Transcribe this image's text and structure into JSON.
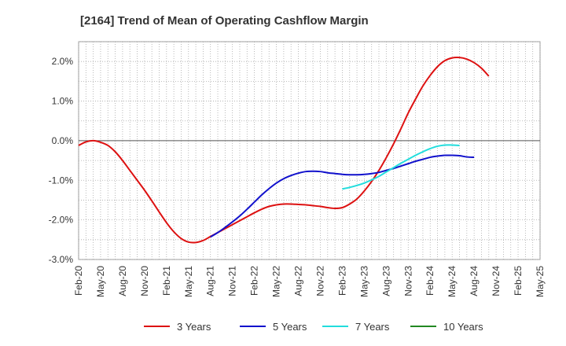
{
  "chart_data": {
    "type": "line",
    "title": "[2164]  Trend of Mean of Operating Cashflow Margin",
    "ylim": [
      -3.0,
      2.5
    ],
    "y_ticks": [
      -3.0,
      -2.0,
      -1.0,
      0.0,
      1.0,
      2.0
    ],
    "y_tick_labels": [
      "-3.0%",
      "-2.0%",
      "-1.0%",
      "0.0%",
      "1.0%",
      "2.0%"
    ],
    "x_ticks": [
      "Feb-20",
      "May-20",
      "Aug-20",
      "Nov-20",
      "Feb-21",
      "May-21",
      "Aug-21",
      "Nov-21",
      "Feb-22",
      "May-22",
      "Aug-22",
      "Nov-22",
      "Feb-23",
      "May-23",
      "Aug-23",
      "Nov-23",
      "Feb-24",
      "May-24",
      "Aug-24",
      "Nov-24",
      "Feb-25",
      "May-25"
    ],
    "grid": true,
    "legend_position": "bottom",
    "series": [
      {
        "name": "3 Years",
        "color": "#dd1111",
        "points": [
          [
            "Feb-20",
            -0.12
          ],
          [
            "Mar-20",
            -0.03
          ],
          [
            "Apr-20",
            0.0
          ],
          [
            "May-20",
            -0.04
          ],
          [
            "Jun-20",
            -0.12
          ],
          [
            "Jul-20",
            -0.28
          ],
          [
            "Aug-20",
            -0.5
          ],
          [
            "Sep-20",
            -0.75
          ],
          [
            "Oct-20",
            -1.0
          ],
          [
            "Nov-20",
            -1.25
          ],
          [
            "Dec-20",
            -1.52
          ],
          [
            "Jan-21",
            -1.8
          ],
          [
            "Feb-21",
            -2.07
          ],
          [
            "Mar-21",
            -2.3
          ],
          [
            "Apr-21",
            -2.47
          ],
          [
            "May-21",
            -2.56
          ],
          [
            "Jun-21",
            -2.57
          ],
          [
            "Jul-21",
            -2.52
          ],
          [
            "Aug-21",
            -2.42
          ],
          [
            "Sep-21",
            -2.32
          ],
          [
            "Oct-21",
            -2.22
          ],
          [
            "Nov-21",
            -2.12
          ],
          [
            "Dec-21",
            -2.02
          ],
          [
            "Jan-22",
            -1.92
          ],
          [
            "Feb-22",
            -1.82
          ],
          [
            "Mar-22",
            -1.73
          ],
          [
            "Apr-22",
            -1.66
          ],
          [
            "May-22",
            -1.62
          ],
          [
            "Jun-22",
            -1.6
          ],
          [
            "Jul-22",
            -1.6
          ],
          [
            "Aug-22",
            -1.61
          ],
          [
            "Sep-22",
            -1.62
          ],
          [
            "Oct-22",
            -1.64
          ],
          [
            "Nov-22",
            -1.66
          ],
          [
            "Dec-22",
            -1.69
          ],
          [
            "Jan-23",
            -1.71
          ],
          [
            "Feb-23",
            -1.69
          ],
          [
            "Mar-23",
            -1.6
          ],
          [
            "Apr-23",
            -1.47
          ],
          [
            "May-23",
            -1.27
          ],
          [
            "Jun-23",
            -1.03
          ],
          [
            "Jul-23",
            -0.75
          ],
          [
            "Aug-23",
            -0.43
          ],
          [
            "Sep-23",
            -0.08
          ],
          [
            "Oct-23",
            0.3
          ],
          [
            "Nov-23",
            0.7
          ],
          [
            "Dec-23",
            1.05
          ],
          [
            "Jan-24",
            1.38
          ],
          [
            "Feb-24",
            1.65
          ],
          [
            "Mar-24",
            1.87
          ],
          [
            "Apr-24",
            2.02
          ],
          [
            "May-24",
            2.09
          ],
          [
            "Jun-24",
            2.1
          ],
          [
            "Jul-24",
            2.06
          ],
          [
            "Aug-24",
            1.97
          ],
          [
            "Sep-24",
            1.83
          ],
          [
            "Oct-24",
            1.63
          ]
        ]
      },
      {
        "name": "5 Years",
        "color": "#1111cc",
        "points": [
          [
            "Aug-21",
            -2.43
          ],
          [
            "Sep-21",
            -2.32
          ],
          [
            "Oct-21",
            -2.19
          ],
          [
            "Nov-21",
            -2.05
          ],
          [
            "Dec-21",
            -1.9
          ],
          [
            "Jan-22",
            -1.73
          ],
          [
            "Feb-22",
            -1.55
          ],
          [
            "Mar-22",
            -1.37
          ],
          [
            "Apr-22",
            -1.21
          ],
          [
            "May-22",
            -1.07
          ],
          [
            "Jun-22",
            -0.96
          ],
          [
            "Jul-22",
            -0.88
          ],
          [
            "Aug-22",
            -0.82
          ],
          [
            "Sep-22",
            -0.78
          ],
          [
            "Oct-22",
            -0.77
          ],
          [
            "Nov-22",
            -0.78
          ],
          [
            "Dec-22",
            -0.81
          ],
          [
            "Jan-23",
            -0.83
          ],
          [
            "Feb-23",
            -0.85
          ],
          [
            "Mar-23",
            -0.86
          ],
          [
            "Apr-23",
            -0.86
          ],
          [
            "May-23",
            -0.85
          ],
          [
            "Jun-23",
            -0.83
          ],
          [
            "Jul-23",
            -0.8
          ],
          [
            "Aug-23",
            -0.75
          ],
          [
            "Sep-23",
            -0.7
          ],
          [
            "Oct-23",
            -0.64
          ],
          [
            "Nov-23",
            -0.58
          ],
          [
            "Dec-23",
            -0.52
          ],
          [
            "Jan-24",
            -0.47
          ],
          [
            "Feb-24",
            -0.42
          ],
          [
            "Mar-24",
            -0.39
          ],
          [
            "Apr-24",
            -0.37
          ],
          [
            "May-24",
            -0.37
          ],
          [
            "Jun-24",
            -0.38
          ],
          [
            "Jul-24",
            -0.41
          ],
          [
            "Aug-24",
            -0.42
          ]
        ]
      },
      {
        "name": "7 Years",
        "color": "#22dddd",
        "points": [
          [
            "Feb-23",
            -1.22
          ],
          [
            "Mar-23",
            -1.18
          ],
          [
            "Apr-23",
            -1.13
          ],
          [
            "May-23",
            -1.07
          ],
          [
            "Jun-23",
            -0.99
          ],
          [
            "Jul-23",
            -0.9
          ],
          [
            "Aug-23",
            -0.79
          ],
          [
            "Sep-23",
            -0.68
          ],
          [
            "Oct-23",
            -0.57
          ],
          [
            "Nov-23",
            -0.47
          ],
          [
            "Dec-23",
            -0.37
          ],
          [
            "Jan-24",
            -0.28
          ],
          [
            "Feb-24",
            -0.2
          ],
          [
            "Mar-24",
            -0.14
          ],
          [
            "Apr-24",
            -0.11
          ],
          [
            "May-24",
            -0.11
          ],
          [
            "Jun-24",
            -0.12
          ]
        ]
      },
      {
        "name": "10 Years",
        "color": "#228822",
        "points": []
      }
    ]
  }
}
